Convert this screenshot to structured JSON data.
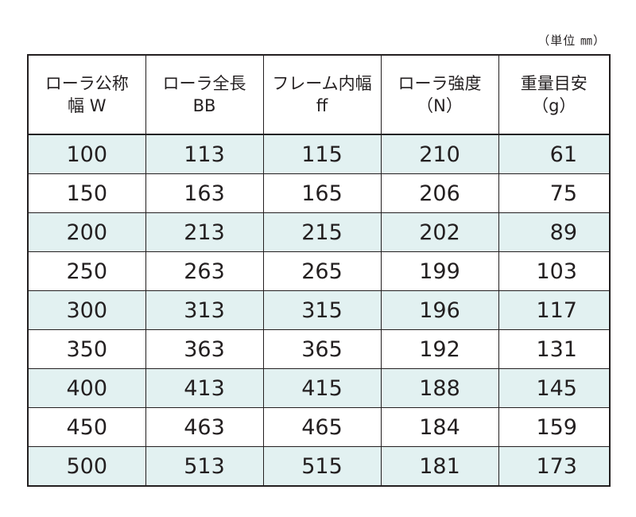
{
  "unit_note": "（単位 ㎜）",
  "table": {
    "headers": [
      {
        "line1": "ローラ公称",
        "line2": "幅 W"
      },
      {
        "line1": "ローラ全長",
        "line2": "BB"
      },
      {
        "line1": "フレーム内幅",
        "line2": "ff"
      },
      {
        "line1": "ローラ強度",
        "line2": "（N）"
      },
      {
        "line1": "重量目安",
        "line2": "（g）"
      }
    ],
    "rows": [
      [
        "100",
        "113",
        "115",
        "210",
        "61"
      ],
      [
        "150",
        "163",
        "165",
        "206",
        "75"
      ],
      [
        "200",
        "213",
        "215",
        "202",
        "89"
      ],
      [
        "250",
        "263",
        "265",
        "199",
        "103"
      ],
      [
        "300",
        "313",
        "315",
        "196",
        "117"
      ],
      [
        "350",
        "363",
        "365",
        "192",
        "131"
      ],
      [
        "400",
        "413",
        "415",
        "188",
        "145"
      ],
      [
        "450",
        "463",
        "465",
        "184",
        "159"
      ],
      [
        "500",
        "513",
        "515",
        "181",
        "173"
      ]
    ]
  },
  "colors": {
    "stripe": "#e2f1f1",
    "border": "#231f20",
    "text": "#231f20"
  }
}
